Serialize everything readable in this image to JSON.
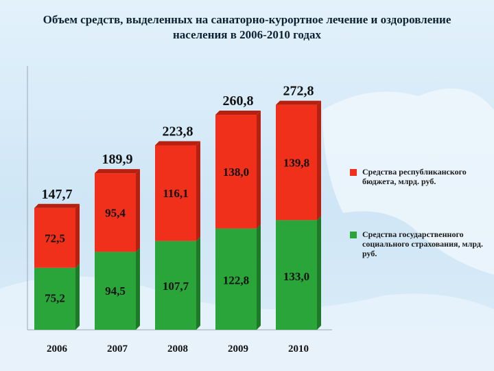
{
  "title": "Объем средств, выделенных на санаторно-курортное лечение и оздоровление населения в 2006-2010 годах",
  "colors": {
    "top": "#f0301a",
    "bottom": "#2aa53a",
    "topDark": "#b52010",
    "bottomDark": "#1c7a28"
  },
  "chart_data": {
    "type": "bar",
    "stacked": true,
    "categories": [
      "2006",
      "2007",
      "2008",
      "2009",
      "2010"
    ],
    "series": [
      {
        "name": "Средства государственного социального страхования, млрд. руб.",
        "values": [
          75.2,
          94.5,
          107.7,
          122.8,
          133.0
        ],
        "labels": [
          "75,2",
          "94,5",
          "107,7",
          "122,8",
          "133,0"
        ]
      },
      {
        "name": "Средства республиканского бюджета, млрд. руб.",
        "values": [
          72.5,
          95.4,
          116.1,
          138.0,
          139.8
        ],
        "labels": [
          "72,5",
          "95,4",
          "116,1",
          "138,0",
          "139,8"
        ]
      }
    ],
    "totals": [
      147.7,
      189.9,
      223.8,
      260.8,
      272.8
    ],
    "total_labels": [
      "147,7",
      "189,9",
      "223,8",
      "260,8",
      "272,8"
    ],
    "ylim": [
      0,
      300
    ],
    "grid": false,
    "legend": "right"
  }
}
